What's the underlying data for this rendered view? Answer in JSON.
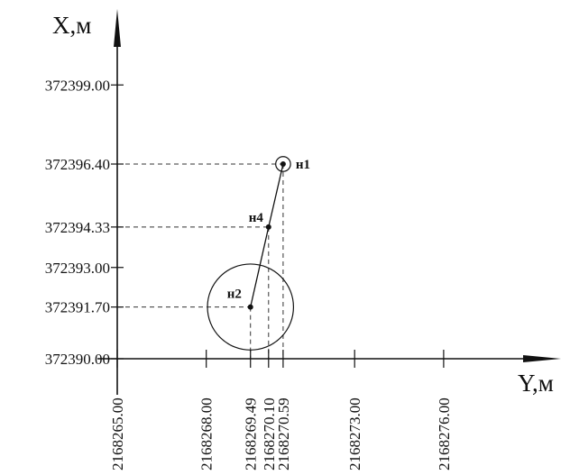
{
  "chart_data": {
    "type": "scatter",
    "x_axis_label": "Y,м",
    "y_axis_label": "X,м",
    "x_ticks": [
      {
        "value": 2168265.0,
        "label": "2168265.00"
      },
      {
        "value": 2168268.0,
        "label": "2168268.00"
      },
      {
        "value": 2168269.49,
        "label": "2168269.49"
      },
      {
        "value": 2168270.1,
        "label": "2168270.10"
      },
      {
        "value": 2168270.59,
        "label": "2168270.59"
      },
      {
        "value": 2168273.0,
        "label": "2168273.00"
      },
      {
        "value": 2168276.0,
        "label": "2168276.00"
      }
    ],
    "y_ticks": [
      {
        "value": 372399.0,
        "label": "372399.00"
      },
      {
        "value": 372396.4,
        "label": "372396.40"
      },
      {
        "value": 372394.33,
        "label": "372394.33"
      },
      {
        "value": 372393.0,
        "label": "372393.00"
      },
      {
        "value": 372391.7,
        "label": "372391.70"
      },
      {
        "value": 372390.0,
        "label": "372390.00"
      }
    ],
    "points": [
      {
        "name": "н1",
        "y": 2168270.59,
        "x": 372396.4
      },
      {
        "name": "н4",
        "y": 2168270.1,
        "x": 372394.33
      },
      {
        "name": "н2",
        "y": 2168269.49,
        "x": 372391.7
      }
    ],
    "segments": [
      [
        "н1",
        "н4"
      ],
      [
        "н4",
        "н2"
      ]
    ],
    "circles": [
      {
        "center": "н1",
        "radius_m": 0.25
      },
      {
        "center": "н2",
        "radius_m": 1.45
      }
    ],
    "dashed_leaders": true,
    "xlim": [
      2168265.0,
      2168280.0
    ],
    "ylim": [
      372390.0,
      372400.1
    ]
  }
}
